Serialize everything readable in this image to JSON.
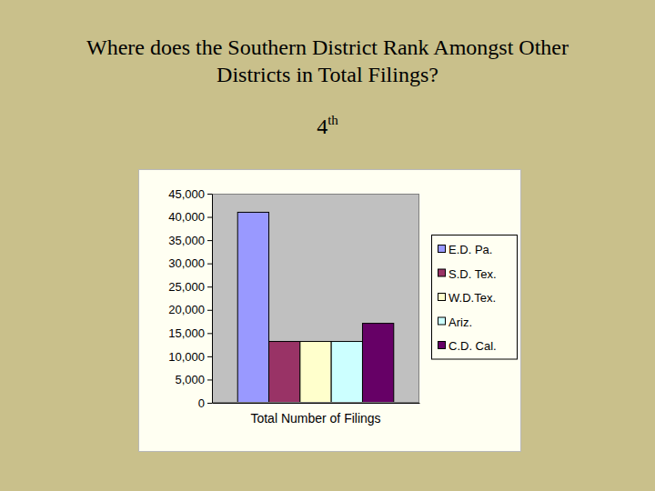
{
  "chart_data": {
    "type": "bar",
    "title": "Where does the Southern District Rank Amongst Other Districts in Total Filings?",
    "annotations": [
      "4th"
    ],
    "categories": [
      "Total Number of Filings"
    ],
    "series": [
      {
        "name": "E.D. Pa.",
        "color": "#9999ff",
        "values": [
          41000
        ]
      },
      {
        "name": "S.D. Tex.",
        "color": "#993366",
        "values": [
          13200
        ]
      },
      {
        "name": "W.D.Tex.",
        "color": "#ffffcc",
        "values": [
          13200
        ]
      },
      {
        "name": "Ariz.",
        "color": "#ccffff",
        "values": [
          13200
        ]
      },
      {
        "name": "C.D. Cal.",
        "color": "#660066",
        "values": [
          17100
        ]
      }
    ],
    "ylim": [
      0,
      45000
    ],
    "yticks": [
      0,
      {
        "value": 5000,
        "label": "5,000"
      },
      {
        "value": 10000,
        "label": "10,000"
      },
      {
        "value": 15000,
        "label": "15,000"
      },
      {
        "value": 20000,
        "label": "20,000"
      },
      {
        "value": 25000,
        "label": "25,000"
      },
      {
        "value": 30000,
        "label": "30,000"
      },
      {
        "value": 35000,
        "label": "35,000"
      },
      {
        "value": 40000,
        "label": "40,000"
      },
      {
        "value": 45000,
        "label": "45,000"
      }
    ],
    "grid": false,
    "legend": "right"
  }
}
